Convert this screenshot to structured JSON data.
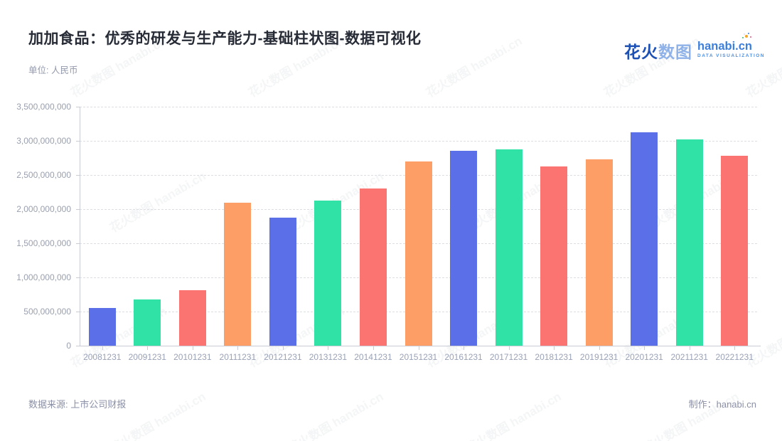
{
  "header": {
    "title": "加加食品：优秀的研发与生产能力-基础柱状图-数据可视化",
    "unit_label": "单位: 人民币"
  },
  "logo": {
    "brand_cn_bold": "花火",
    "brand_cn_light": "数图",
    "brand_en": "hanabi.cn",
    "tagline": "DATA VISUALIZATION"
  },
  "watermark": {
    "text": "花火数图 hanabi.cn"
  },
  "footer": {
    "source": "数据来源: 上市公司财报",
    "credit_label": "制作：",
    "credit_value": "hanabi.cn"
  },
  "chart_data": {
    "type": "bar",
    "title": "加加食品：优秀的研发与生产能力-基础柱状图-数据可视化",
    "unit_label": "单位: 人民币",
    "xlabel": "",
    "ylabel": "人民币",
    "categories": [
      "20081231",
      "20091231",
      "20101231",
      "20111231",
      "20121231",
      "20131231",
      "20141231",
      "20151231",
      "20161231",
      "20171231",
      "20181231",
      "20191231",
      "20201231",
      "20211231",
      "20221231"
    ],
    "values": [
      550000000,
      680000000,
      815000000,
      2090000000,
      1870000000,
      2130000000,
      2300000000,
      2700000000,
      2850000000,
      2880000000,
      2620000000,
      2730000000,
      3130000000,
      3020000000,
      2780000000
    ],
    "bar_palette": [
      "#5B70E8",
      "#30E2A5",
      "#FC7471",
      "#FC9E66"
    ],
    "ylim": [
      0,
      3500000000
    ],
    "ytick_interval": 500000000,
    "yticks": [
      {
        "value": 0,
        "label": "0"
      },
      {
        "value": 500000000,
        "label": "500,000,000"
      },
      {
        "value": 1000000000,
        "label": "1,000,000,000"
      },
      {
        "value": 1500000000,
        "label": "1,500,000,000"
      },
      {
        "value": 2000000000,
        "label": "2,000,000,000"
      },
      {
        "value": 2500000000,
        "label": "2,500,000,000"
      },
      {
        "value": 3000000000,
        "label": "3,000,000,000"
      },
      {
        "value": 3500000000,
        "label": "3,500,000,000"
      }
    ],
    "grid": "horizontal-dashed",
    "legend": "none",
    "axis_color": "#c9ccd4",
    "gridline_color": "#dcdee3",
    "tick_label_color": "#9aa2b6"
  }
}
